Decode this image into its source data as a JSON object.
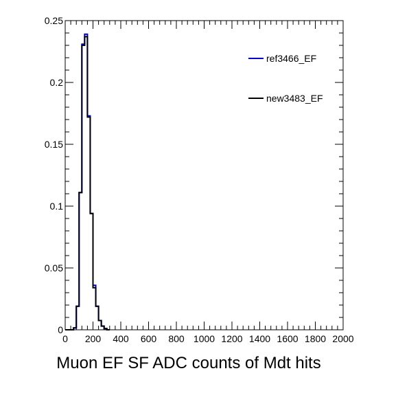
{
  "chart_data": {
    "type": "line",
    "style": "step-histogram",
    "title": "",
    "xlabel": "Muon EF SF ADC counts of Mdt hits",
    "ylabel": "",
    "xlim": [
      0,
      2000
    ],
    "ylim": [
      0,
      0.25
    ],
    "x_ticks": [
      0,
      200,
      400,
      600,
      800,
      1000,
      1200,
      1400,
      1600,
      1800,
      2000
    ],
    "y_ticks": [
      0,
      0.05,
      0.1,
      0.15,
      0.2,
      0.25
    ],
    "y_tick_labels": [
      "0",
      "0.05",
      "0.1",
      "0.15",
      "0.2",
      "0.25"
    ],
    "bin_edges": [
      0,
      20,
      40,
      60,
      80,
      100,
      120,
      140,
      160,
      180,
      200,
      220,
      240,
      260,
      280,
      300,
      320
    ],
    "legend_position": "top-right",
    "grid": false,
    "series": [
      {
        "name": "ref3466_EF",
        "color": "#0000cc",
        "values": [
          0,
          0,
          0,
          0.0015,
          0.019,
          0.111,
          0.231,
          0.239,
          0.173,
          0.094,
          0.036,
          0.019,
          0.0075,
          0.003,
          0.001,
          0,
          0
        ]
      },
      {
        "name": "new3483_EF",
        "color": "#000000",
        "values": [
          0,
          0,
          0,
          0.0015,
          0.019,
          0.111,
          0.23,
          0.237,
          0.172,
          0.094,
          0.034,
          0.019,
          0.0075,
          0.003,
          0.001,
          0,
          0
        ]
      }
    ]
  }
}
